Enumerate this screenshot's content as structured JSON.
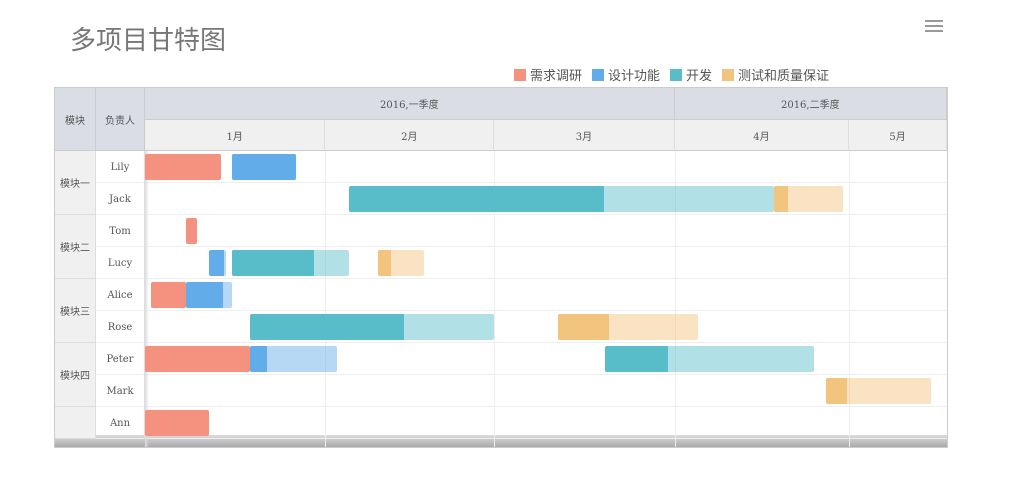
{
  "header": {
    "title": "多项目甘特图",
    "menu_icon": "hamburger-menu-icon"
  },
  "chart_data": {
    "type": "gantt",
    "title": "多项目甘特图",
    "legend": [
      {
        "name": "需求调研",
        "color": "#f4917f"
      },
      {
        "name": "设计功能",
        "color": "#62acea"
      },
      {
        "name": "开发",
        "color": "#58bdc9"
      },
      {
        "name": "测试和质量保证",
        "color": "#f2c47d"
      }
    ],
    "columns": [
      "模块",
      "负责人"
    ],
    "quarters": [
      {
        "label": "2016,一季度"
      },
      {
        "label": "2016,二季度"
      }
    ],
    "months": [
      "1月",
      "2月",
      "3月",
      "4月",
      "5月"
    ],
    "x_range": [
      "2016-01-01",
      "2016-05-18"
    ],
    "groups": [
      {
        "label": "模块一",
        "rows": [
          0,
          1
        ]
      },
      {
        "label": "模块二",
        "rows": [
          2,
          3
        ]
      },
      {
        "label": "模块三",
        "rows": [
          4,
          5
        ]
      },
      {
        "label": "模块四",
        "rows": [
          6,
          7
        ]
      },
      {
        "label": "",
        "rows": [
          8
        ]
      }
    ],
    "rows": [
      {
        "owner": "Lily",
        "tasks": [
          {
            "type": 0,
            "start": "2016-01-01",
            "end": "2016-01-14",
            "progress": 1
          },
          {
            "type": 1,
            "start": "2016-01-16",
            "end": "2016-01-27",
            "progress": 1
          }
        ]
      },
      {
        "owner": "Jack",
        "tasks": [
          {
            "type": 2,
            "start": "2016-02-05",
            "end": "2016-04-18",
            "progress": 0.6
          },
          {
            "type": 3,
            "start": "2016-04-18",
            "end": "2016-04-30",
            "progress": 0.2
          }
        ]
      },
      {
        "owner": "Tom",
        "tasks": [
          {
            "type": 0,
            "start": "2016-01-08",
            "end": "2016-01-10",
            "progress": 1
          }
        ]
      },
      {
        "owner": "Lucy",
        "tasks": [
          {
            "type": 1,
            "start": "2016-01-12",
            "end": "2016-01-15",
            "progress": 0.85
          },
          {
            "type": 2,
            "start": "2016-01-16",
            "end": "2016-02-05",
            "progress": 0.7
          },
          {
            "type": 3,
            "start": "2016-02-10",
            "end": "2016-02-18",
            "progress": 0.28
          }
        ]
      },
      {
        "owner": "Alice",
        "tasks": [
          {
            "type": 0,
            "start": "2016-01-02",
            "end": "2016-01-08",
            "progress": 1
          },
          {
            "type": 1,
            "start": "2016-01-08",
            "end": "2016-01-16",
            "progress": 0.8
          }
        ]
      },
      {
        "owner": "Rose",
        "tasks": [
          {
            "type": 2,
            "start": "2016-01-19",
            "end": "2016-03-01",
            "progress": 0.63
          },
          {
            "type": 3,
            "start": "2016-03-12",
            "end": "2016-04-05",
            "progress": 0.36
          }
        ]
      },
      {
        "owner": "Peter",
        "tasks": [
          {
            "type": 0,
            "start": "2016-01-01",
            "end": "2016-01-19",
            "progress": 1
          },
          {
            "type": 1,
            "start": "2016-01-19",
            "end": "2016-02-03",
            "progress": 0.2
          },
          {
            "type": 2,
            "start": "2016-03-20",
            "end": "2016-04-25",
            "progress": 0.3
          }
        ]
      },
      {
        "owner": "Mark",
        "tasks": [
          {
            "type": 3,
            "start": "2016-04-27",
            "end": "2016-05-15",
            "progress": 0.2
          }
        ]
      },
      {
        "owner": "Ann",
        "tasks": [
          {
            "type": 0,
            "start": "2016-01-01",
            "end": "2016-01-12",
            "progress": 1
          }
        ]
      }
    ]
  }
}
